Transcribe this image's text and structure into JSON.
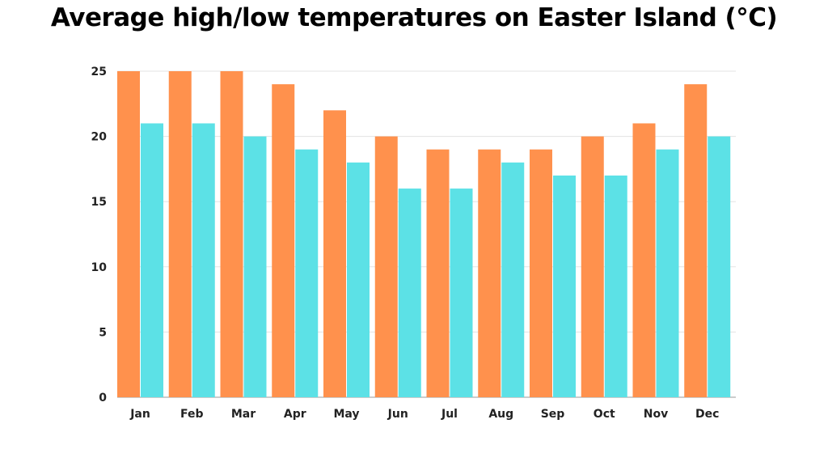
{
  "chart_data": {
    "type": "bar",
    "title": "Average high/low temperatures on Easter Island (°C)",
    "categories": [
      "Jan",
      "Feb",
      "Mar",
      "Apr",
      "May",
      "Jun",
      "Jul",
      "Aug",
      "Sep",
      "Oct",
      "Nov",
      "Dec"
    ],
    "series": [
      {
        "values": [
          25,
          25,
          25,
          24,
          22,
          20,
          19,
          19,
          19,
          20,
          21,
          24
        ],
        "color": "#FF914D"
      },
      {
        "values": [
          21,
          21,
          20,
          19,
          18,
          16,
          16,
          18,
          17,
          17,
          19,
          20
        ],
        "color": "#5CE1E6"
      }
    ],
    "ylim": [
      0,
      25
    ],
    "yticks": [
      0,
      5,
      10,
      15,
      20,
      25
    ],
    "xlabel": "",
    "ylabel": "",
    "grid": true,
    "legend": "none"
  }
}
